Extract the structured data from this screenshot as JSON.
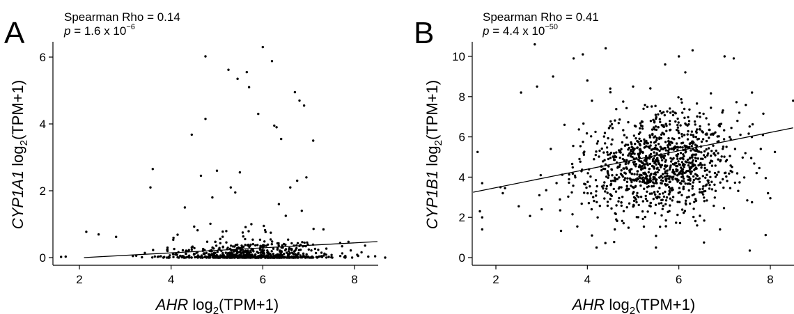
{
  "chart_data": [
    {
      "type": "scatter",
      "panel_label": "A",
      "stat_line1": "Spearman Rho = 0.14",
      "stat_p_label": "p",
      "stat_p_value": " = 1.6 x 10",
      "stat_p_exp": "−6",
      "ylabel": {
        "gene": "CYP1A1",
        "text": " log",
        "sub": "2",
        "rest": "(TPM+1)"
      },
      "xlabel": {
        "gene": "AHR",
        "text": " log",
        "sub": "2",
        "rest": "(TPM+1)"
      },
      "xlim": [
        1.5,
        8.5
      ],
      "ylim": [
        -0.05,
        6.45
      ],
      "xticks": [
        2,
        4,
        6,
        8
      ],
      "yticks": [
        0,
        2,
        4,
        6
      ],
      "trend_line": {
        "x": [
          2.1,
          8.5
        ],
        "y": [
          0.0,
          0.48
        ]
      },
      "cloud": {
        "n": 700,
        "center_x": 5.7,
        "spread_x": 0.85,
        "typical_y_max": 0.35,
        "y_floor": 0
      },
      "points": [
        [
          1.6,
          0.02
        ],
        [
          1.7,
          0.03
        ],
        [
          2.15,
          0.77
        ],
        [
          2.8,
          0.62
        ],
        [
          3.6,
          2.65
        ],
        [
          3.55,
          2.1
        ],
        [
          4.45,
          3.68
        ],
        [
          4.75,
          6.02
        ],
        [
          4.75,
          4.15
        ],
        [
          4.65,
          2.45
        ],
        [
          5.25,
          5.62
        ],
        [
          5.45,
          5.35
        ],
        [
          5.65,
          5.55
        ],
        [
          5.7,
          5.1
        ],
        [
          5.9,
          4.3
        ],
        [
          6.0,
          6.3
        ],
        [
          6.2,
          5.88
        ],
        [
          6.25,
          3.95
        ],
        [
          6.3,
          3.9
        ],
        [
          6.4,
          3.55
        ],
        [
          6.7,
          4.95
        ],
        [
          6.8,
          4.7
        ],
        [
          6.9,
          4.55
        ],
        [
          7.1,
          3.5
        ],
        [
          5.0,
          2.6
        ],
        [
          5.3,
          2.1
        ],
        [
          5.4,
          1.95
        ],
        [
          5.5,
          2.55
        ],
        [
          6.35,
          1.6
        ],
        [
          6.5,
          1.25
        ],
        [
          6.85,
          1.4
        ],
        [
          6.95,
          2.4
        ],
        [
          6.6,
          2.1
        ],
        [
          6.75,
          2.3
        ],
        [
          4.9,
          1.8
        ],
        [
          4.3,
          1.5
        ],
        [
          6.05,
          0.82
        ],
        [
          5.75,
          1.0
        ],
        [
          8.45,
          0.04
        ],
        [
          8.3,
          0.03
        ],
        [
          7.8,
          0.05
        ],
        [
          7.5,
          0.08
        ]
      ]
    },
    {
      "type": "scatter",
      "panel_label": "B",
      "stat_line1": "Spearman Rho = 0.41",
      "stat_p_label": "p",
      "stat_p_value": " = 4.4 x 10",
      "stat_p_exp": "−50",
      "ylabel": {
        "gene": "CYP1B1",
        "text": " log",
        "sub": "2",
        "rest": "(TPM+1)"
      },
      "xlabel": {
        "gene": "AHR",
        "text": " log",
        "sub": "2",
        "rest": "(TPM+1)"
      },
      "xlim": [
        1.5,
        8.5
      ],
      "ylim": [
        0,
        10.7
      ],
      "xticks": [
        2,
        4,
        6,
        8
      ],
      "yticks": [
        0,
        2,
        4,
        6,
        8,
        10
      ],
      "trend_line": {
        "x": [
          1.5,
          8.5
        ],
        "y": [
          3.25,
          6.45
        ]
      },
      "cloud": {
        "n": 1100,
        "center_x": 5.6,
        "spread_x": 0.85,
        "center_y": 5.1,
        "spread_y": 1.3
      },
      "points": [
        [
          1.6,
          5.25
        ],
        [
          1.7,
          3.7
        ],
        [
          1.65,
          2.3
        ],
        [
          1.7,
          2.0
        ],
        [
          1.7,
          1.4
        ],
        [
          2.1,
          3.5
        ],
        [
          2.15,
          3.2
        ],
        [
          2.5,
          2.55
        ],
        [
          2.55,
          8.2
        ],
        [
          2.85,
          10.6
        ],
        [
          2.9,
          8.5
        ],
        [
          3.2,
          5.4
        ],
        [
          3.1,
          3.35
        ],
        [
          3.0,
          2.4
        ],
        [
          3.25,
          9.0
        ],
        [
          3.5,
          6.6
        ],
        [
          3.7,
          9.9
        ],
        [
          3.9,
          10.1
        ],
        [
          4.0,
          8.8
        ],
        [
          4.4,
          10.4
        ],
        [
          4.2,
          0.5
        ],
        [
          4.1,
          7.8
        ],
        [
          4.5,
          8.4
        ],
        [
          5.0,
          8.5
        ],
        [
          5.7,
          9.6
        ],
        [
          6.3,
          10.3
        ],
        [
          6.0,
          10.0
        ],
        [
          7.0,
          10.0
        ],
        [
          7.2,
          9.9
        ],
        [
          7.6,
          8.2
        ],
        [
          8.5,
          7.8
        ],
        [
          8.1,
          5.25
        ],
        [
          7.95,
          3.2
        ],
        [
          8.0,
          2.95
        ],
        [
          7.6,
          2.75
        ],
        [
          7.55,
          0.35
        ],
        [
          6.55,
          0.75
        ],
        [
          5.5,
          0.5
        ],
        [
          4.6,
          1.4
        ],
        [
          4.1,
          1.1
        ],
        [
          6.9,
          1.4
        ],
        [
          6.4,
          1.6
        ],
        [
          7.7,
          4.2
        ],
        [
          7.9,
          3.95
        ],
        [
          2.2,
          3.45
        ],
        [
          2.95,
          3.1
        ]
      ]
    }
  ]
}
